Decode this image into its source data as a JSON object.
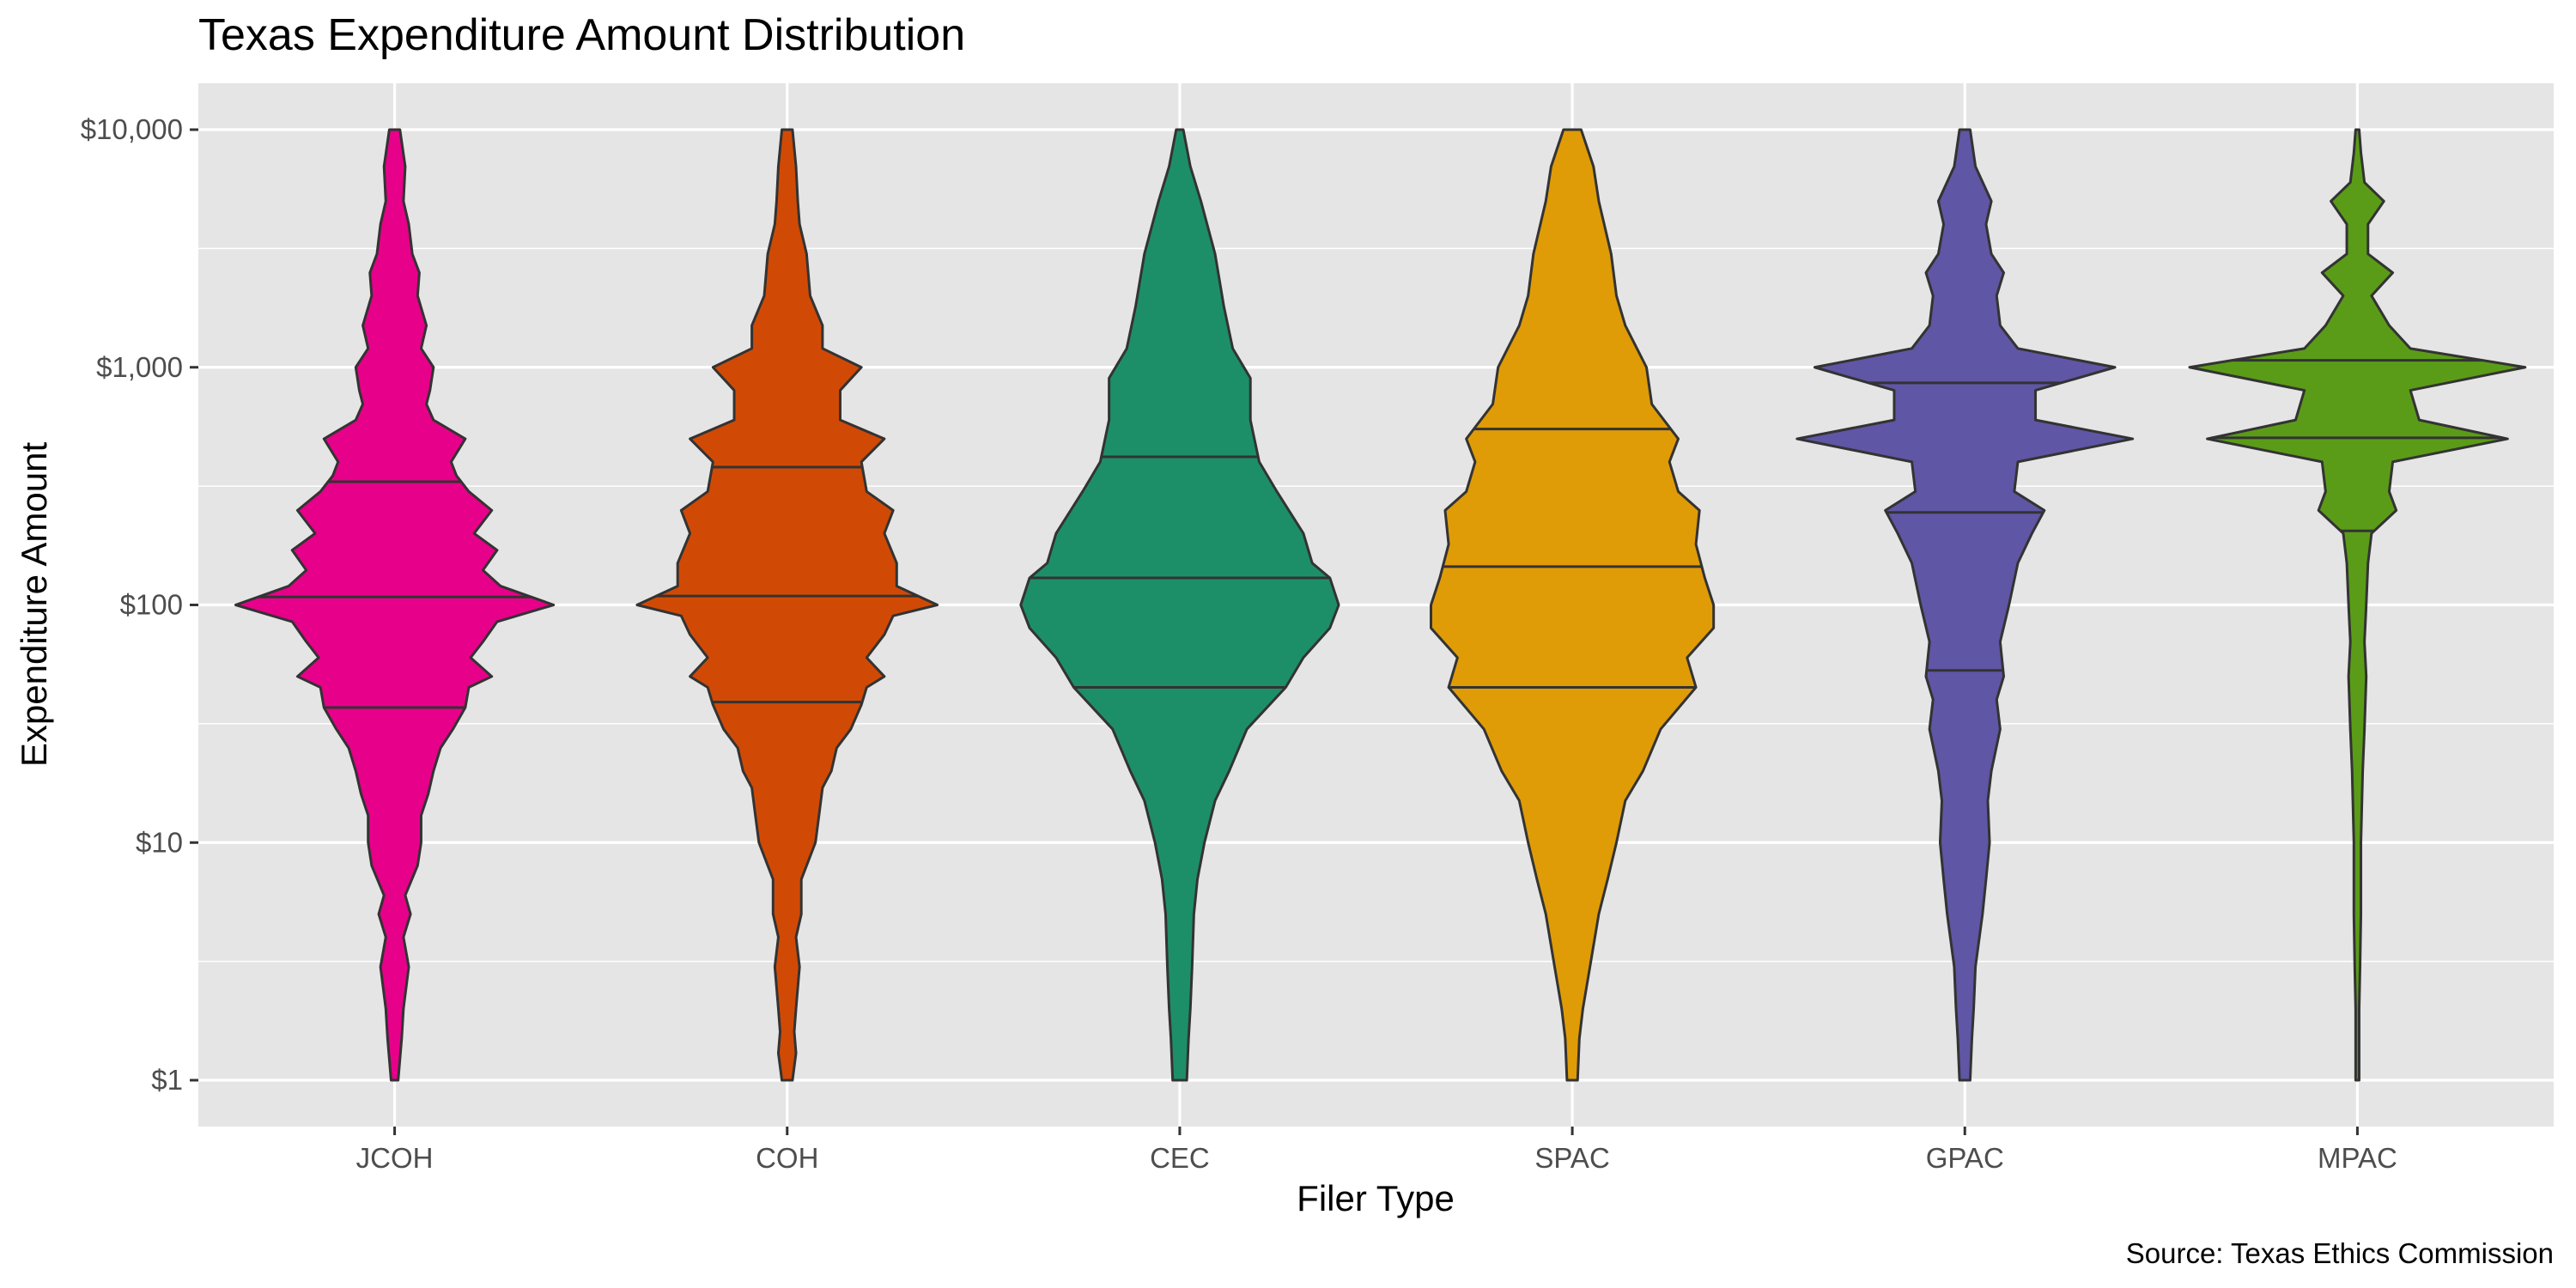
{
  "chart_data": {
    "type": "violin",
    "title": "Texas Expenditure Amount Distribution",
    "xlabel": "Filer Type",
    "ylabel": "Expenditure Amount",
    "caption": "Source: Texas Ethics Commission",
    "y_scale": "log10",
    "ylim": [
      1,
      10000
    ],
    "y_ticks": [
      {
        "value": 1,
        "label": "$1"
      },
      {
        "value": 10,
        "label": "$10"
      },
      {
        "value": 100,
        "label": "$100"
      },
      {
        "value": 1000,
        "label": "$1,000"
      },
      {
        "value": 10000,
        "label": "$10,000"
      }
    ],
    "grid": true,
    "legend": "none",
    "categories": [
      "JCOH",
      "COH",
      "CEC",
      "SPAC",
      "GPAC",
      "MPAC"
    ],
    "series": [
      {
        "category": "JCOH",
        "color": "#E7008A",
        "quantiles": {
          "q25": 37,
          "median": 108,
          "q75": 330
        },
        "density": [
          [
            1,
            0.02
          ],
          [
            1.5,
            0.04
          ],
          [
            2,
            0.05
          ],
          [
            3,
            0.08
          ],
          [
            4,
            0.05
          ],
          [
            5,
            0.09
          ],
          [
            6,
            0.06
          ],
          [
            8,
            0.13
          ],
          [
            10,
            0.15
          ],
          [
            13,
            0.15
          ],
          [
            16,
            0.19
          ],
          [
            20,
            0.22
          ],
          [
            25,
            0.26
          ],
          [
            30,
            0.33
          ],
          [
            37,
            0.4
          ],
          [
            45,
            0.42
          ],
          [
            50,
            0.55
          ],
          [
            60,
            0.43
          ],
          [
            70,
            0.5
          ],
          [
            85,
            0.58
          ],
          [
            100,
            0.9
          ],
          [
            120,
            0.6
          ],
          [
            140,
            0.5
          ],
          [
            170,
            0.58
          ],
          [
            200,
            0.45
          ],
          [
            250,
            0.55
          ],
          [
            300,
            0.42
          ],
          [
            350,
            0.35
          ],
          [
            400,
            0.32
          ],
          [
            500,
            0.4
          ],
          [
            600,
            0.22
          ],
          [
            700,
            0.18
          ],
          [
            800,
            0.2
          ],
          [
            1000,
            0.22
          ],
          [
            1200,
            0.15
          ],
          [
            1500,
            0.18
          ],
          [
            2000,
            0.13
          ],
          [
            2500,
            0.14
          ],
          [
            3000,
            0.1
          ],
          [
            4000,
            0.08
          ],
          [
            5000,
            0.05
          ],
          [
            7000,
            0.06
          ],
          [
            10000,
            0.03
          ]
        ]
      },
      {
        "category": "COH",
        "color": "#D14A05",
        "quantiles": {
          "q25": 39,
          "median": 109,
          "q75": 380
        },
        "density": [
          [
            1,
            0.03
          ],
          [
            1.3,
            0.05
          ],
          [
            1.6,
            0.04
          ],
          [
            2,
            0.05
          ],
          [
            3,
            0.07
          ],
          [
            4,
            0.05
          ],
          [
            5,
            0.08
          ],
          [
            7,
            0.08
          ],
          [
            10,
            0.16
          ],
          [
            13,
            0.18
          ],
          [
            17,
            0.2
          ],
          [
            20,
            0.25
          ],
          [
            25,
            0.28
          ],
          [
            30,
            0.36
          ],
          [
            38,
            0.42
          ],
          [
            45,
            0.45
          ],
          [
            50,
            0.55
          ],
          [
            60,
            0.45
          ],
          [
            75,
            0.55
          ],
          [
            90,
            0.6
          ],
          [
            100,
            0.85
          ],
          [
            120,
            0.62
          ],
          [
            150,
            0.62
          ],
          [
            200,
            0.55
          ],
          [
            250,
            0.6
          ],
          [
            300,
            0.45
          ],
          [
            400,
            0.42
          ],
          [
            500,
            0.55
          ],
          [
            600,
            0.3
          ],
          [
            800,
            0.3
          ],
          [
            1000,
            0.42
          ],
          [
            1200,
            0.2
          ],
          [
            1500,
            0.2
          ],
          [
            2000,
            0.13
          ],
          [
            3000,
            0.11
          ],
          [
            4000,
            0.07
          ],
          [
            5000,
            0.06
          ],
          [
            7000,
            0.05
          ],
          [
            10000,
            0.03
          ]
        ]
      },
      {
        "category": "CEC",
        "color": "#1D8F68",
        "quantiles": {
          "q25": 45,
          "median": 130,
          "q75": 420
        },
        "density": [
          [
            1,
            0.04
          ],
          [
            1.5,
            0.05
          ],
          [
            2,
            0.06
          ],
          [
            3,
            0.07
          ],
          [
            5,
            0.08
          ],
          [
            7,
            0.1
          ],
          [
            10,
            0.14
          ],
          [
            15,
            0.2
          ],
          [
            20,
            0.28
          ],
          [
            30,
            0.38
          ],
          [
            45,
            0.6
          ],
          [
            60,
            0.7
          ],
          [
            80,
            0.85
          ],
          [
            100,
            0.9
          ],
          [
            130,
            0.85
          ],
          [
            150,
            0.75
          ],
          [
            200,
            0.7
          ],
          [
            300,
            0.55
          ],
          [
            400,
            0.45
          ],
          [
            600,
            0.4
          ],
          [
            900,
            0.4
          ],
          [
            1200,
            0.3
          ],
          [
            1800,
            0.25
          ],
          [
            3000,
            0.2
          ],
          [
            5000,
            0.12
          ],
          [
            7000,
            0.06
          ],
          [
            10000,
            0.02
          ]
        ]
      },
      {
        "category": "SPAC",
        "color": "#DF9C07",
        "quantiles": {
          "q25": 45,
          "median": 145,
          "q75": 550
        },
        "density": [
          [
            1,
            0.03
          ],
          [
            1.5,
            0.04
          ],
          [
            2,
            0.06
          ],
          [
            3,
            0.1
          ],
          [
            5,
            0.15
          ],
          [
            7,
            0.2
          ],
          [
            10,
            0.25
          ],
          [
            15,
            0.3
          ],
          [
            20,
            0.4
          ],
          [
            30,
            0.5
          ],
          [
            45,
            0.7
          ],
          [
            60,
            0.65
          ],
          [
            80,
            0.8
          ],
          [
            100,
            0.8
          ],
          [
            130,
            0.75
          ],
          [
            180,
            0.7
          ],
          [
            250,
            0.72
          ],
          [
            300,
            0.6
          ],
          [
            400,
            0.55
          ],
          [
            500,
            0.6
          ],
          [
            700,
            0.45
          ],
          [
            1000,
            0.42
          ],
          [
            1500,
            0.3
          ],
          [
            2000,
            0.25
          ],
          [
            3000,
            0.22
          ],
          [
            5000,
            0.15
          ],
          [
            7000,
            0.12
          ],
          [
            10000,
            0.05
          ]
        ]
      },
      {
        "category": "GPAC",
        "color": "#5F56A5",
        "quantiles": {
          "q25": 53,
          "median": 245,
          "q75": 860
        },
        "density": [
          [
            1,
            0.03
          ],
          [
            1.5,
            0.04
          ],
          [
            2,
            0.05
          ],
          [
            3,
            0.06
          ],
          [
            5,
            0.1
          ],
          [
            7,
            0.12
          ],
          [
            10,
            0.14
          ],
          [
            15,
            0.13
          ],
          [
            20,
            0.15
          ],
          [
            30,
            0.2
          ],
          [
            40,
            0.18
          ],
          [
            50,
            0.22
          ],
          [
            70,
            0.2
          ],
          [
            100,
            0.25
          ],
          [
            150,
            0.3
          ],
          [
            200,
            0.38
          ],
          [
            250,
            0.45
          ],
          [
            300,
            0.28
          ],
          [
            400,
            0.3
          ],
          [
            500,
            0.95
          ],
          [
            600,
            0.4
          ],
          [
            800,
            0.4
          ],
          [
            1000,
            0.85
          ],
          [
            1200,
            0.3
          ],
          [
            1500,
            0.2
          ],
          [
            2000,
            0.18
          ],
          [
            2500,
            0.22
          ],
          [
            3000,
            0.15
          ],
          [
            4000,
            0.12
          ],
          [
            5000,
            0.15
          ],
          [
            7000,
            0.06
          ],
          [
            10000,
            0.03
          ]
        ]
      },
      {
        "category": "MPAC",
        "color": "#5A9C17",
        "quantiles": {
          "q25": 205,
          "median": 505,
          "q75": 1070
        },
        "density": [
          [
            1,
            0.01
          ],
          [
            2,
            0.01
          ],
          [
            3,
            0.015
          ],
          [
            5,
            0.02
          ],
          [
            10,
            0.02
          ],
          [
            20,
            0.03
          ],
          [
            30,
            0.04
          ],
          [
            50,
            0.05
          ],
          [
            70,
            0.04
          ],
          [
            100,
            0.05
          ],
          [
            150,
            0.06
          ],
          [
            200,
            0.08
          ],
          [
            250,
            0.22
          ],
          [
            300,
            0.18
          ],
          [
            400,
            0.2
          ],
          [
            500,
            0.85
          ],
          [
            600,
            0.35
          ],
          [
            800,
            0.3
          ],
          [
            1000,
            0.95
          ],
          [
            1200,
            0.3
          ],
          [
            1500,
            0.18
          ],
          [
            2000,
            0.08
          ],
          [
            2500,
            0.2
          ],
          [
            3000,
            0.06
          ],
          [
            4000,
            0.06
          ],
          [
            5000,
            0.15
          ],
          [
            6000,
            0.04
          ],
          [
            8000,
            0.02
          ],
          [
            10000,
            0.01
          ]
        ]
      }
    ]
  }
}
